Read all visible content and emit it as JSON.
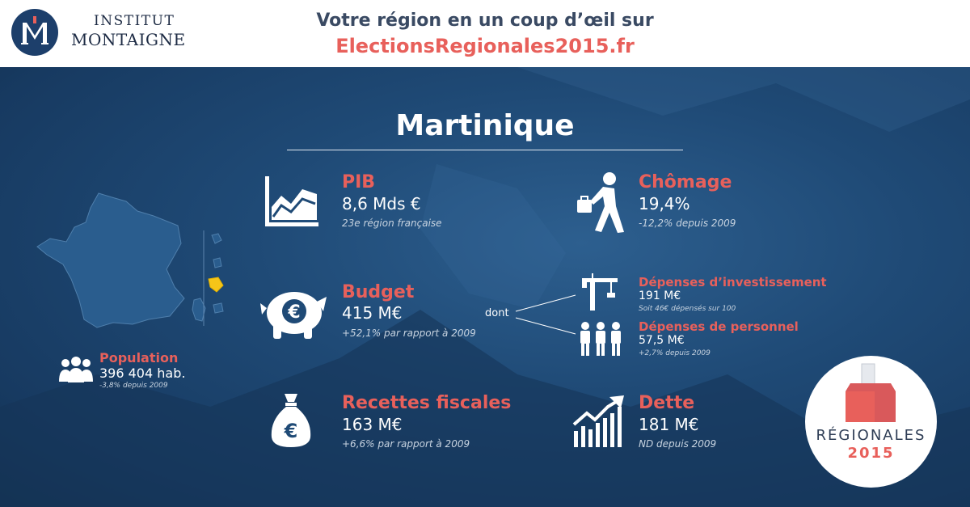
{
  "header": {
    "logo": {
      "line1": "INSTITUT",
      "line2": "MONTAIGNE"
    },
    "tagline": "Votre région en un coup d’œil sur",
    "site": "ElectionsRegionales2015.fr"
  },
  "region": {
    "name": "Martinique"
  },
  "population": {
    "label": "Population",
    "value": "396 404 hab.",
    "note": "-3,8% depuis 2009"
  },
  "pib": {
    "label": "PIB",
    "value": "8,6 Mds €",
    "note": "23e région française"
  },
  "chomage": {
    "label": "Chômage",
    "value": "19,4%",
    "note": "-12,2% depuis 2009"
  },
  "budget": {
    "label": "Budget",
    "value": "415 M€",
    "note": "+52,1% par rapport à 2009"
  },
  "dont": "dont",
  "depenses_investissement": {
    "label": "Dépenses d’investissement",
    "value": "191 M€",
    "note": "Soit 46€ dépensés sur 100"
  },
  "depenses_personnel": {
    "label": "Dépenses de personnel",
    "value": "57,5 M€",
    "note": "+2,7% depuis 2009"
  },
  "recettes": {
    "label": "Recettes fiscales",
    "value": "163 M€",
    "note": "+6,6% par rapport à 2009"
  },
  "dette": {
    "label": "Dette",
    "value": "181 M€",
    "note": "ND depuis 2009"
  },
  "badge": {
    "line1": "RÉGIONALES",
    "line2": "2015"
  },
  "colors": {
    "accent": "#e8605b",
    "navy": "#1d3f6b",
    "highlight": "#f5c518"
  }
}
